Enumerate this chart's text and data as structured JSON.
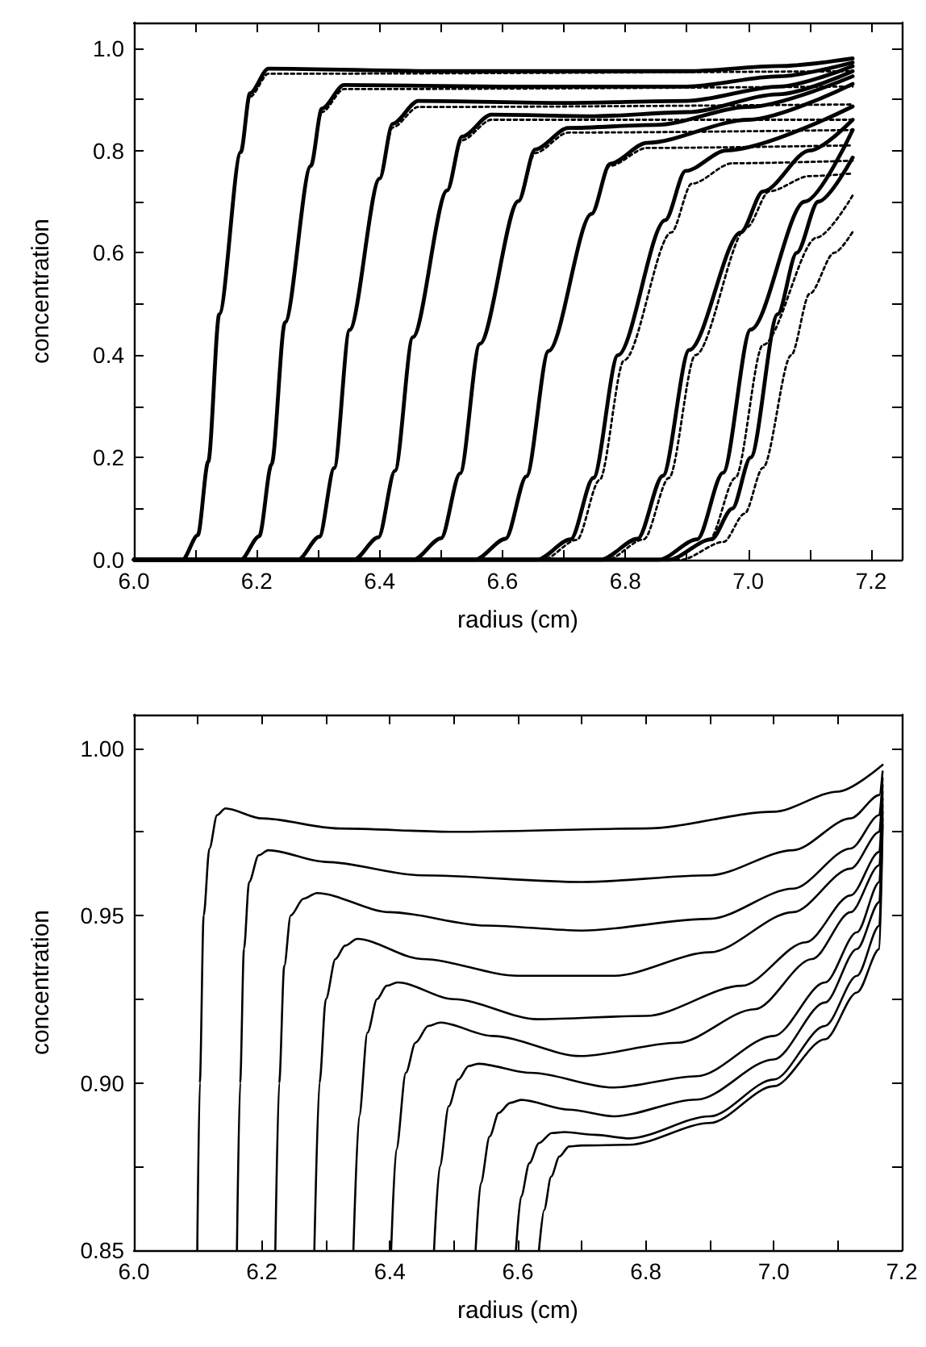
{
  "chart_data": [
    {
      "type": "line",
      "xlabel": "radius (cm)",
      "ylabel": "concentration",
      "xlim": [
        6.0,
        7.25
      ],
      "ylim": [
        0,
        1.05
      ],
      "marker": "none",
      "grid": false,
      "xticks": [
        {
          "value": 6.0,
          "label": "6.0"
        },
        {
          "value": 6.1,
          "label": null
        },
        {
          "value": 6.2,
          "label": "6.2"
        },
        {
          "value": 6.3,
          "label": null
        },
        {
          "value": 6.4,
          "label": "6.4"
        },
        {
          "value": 6.5,
          "label": null
        },
        {
          "value": 6.6,
          "label": "6.6"
        },
        {
          "value": 6.7,
          "label": null
        },
        {
          "value": 6.8,
          "label": "6.8"
        },
        {
          "value": 6.9,
          "label": null
        },
        {
          "value": 7.0,
          "label": "7.0"
        },
        {
          "value": 7.1,
          "label": null
        },
        {
          "value": 7.2,
          "label": "7.2"
        }
      ],
      "yticks": [
        {
          "value": 0,
          "label": "0.0"
        },
        {
          "value": 0.1,
          "label": null
        },
        {
          "value": 0.2,
          "label": "0.2"
        },
        {
          "value": 0.3,
          "label": null
        },
        {
          "value": 0.4,
          "label": "0.4"
        },
        {
          "value": 0.5,
          "label": null
        },
        {
          "value": 0.6,
          "label": "0.6"
        },
        {
          "value": 0.7,
          "label": null
        },
        {
          "value": 0.8,
          "label": "0.8"
        },
        {
          "value": 0.9,
          "label": null
        },
        {
          "value": 1.0,
          "label": "1.0"
        }
      ],
      "series": [
        {
          "color": "#000000",
          "line_style": "dotted",
          "x": [
            6.0,
            6.079,
            6.104,
            6.121,
            6.139,
            6.174,
            6.189,
            6.219,
            7.17
          ],
          "values": [
            0,
            0,
            0.048,
            0.192,
            0.48,
            0.797,
            0.905,
            0.95,
            0.955
          ]
        },
        {
          "color": "#000000",
          "line_style": "dotted",
          "x": [
            6.0,
            6.174,
            6.204,
            6.224,
            6.246,
            6.288,
            6.306,
            6.342,
            7.17
          ],
          "values": [
            0,
            0,
            0.046,
            0.186,
            0.464,
            0.77,
            0.875,
            0.92,
            0.925
          ]
        },
        {
          "color": "#000000",
          "line_style": "dotted",
          "x": [
            6.0,
            6.267,
            6.302,
            6.326,
            6.351,
            6.4,
            6.421,
            6.463,
            7.17
          ],
          "values": [
            0,
            0,
            0.045,
            0.179,
            0.449,
            0.745,
            0.845,
            0.885,
            0.89
          ]
        },
        {
          "color": "#000000",
          "line_style": "dotted",
          "x": [
            6.0,
            6.358,
            6.398,
            6.425,
            6.454,
            6.51,
            6.534,
            6.582,
            7.17
          ],
          "values": [
            0,
            0,
            0.044,
            0.174,
            0.435,
            0.722,
            0.82,
            0.86,
            0.86
          ]
        },
        {
          "color": "#000000",
          "line_style": "dotted",
          "x": [
            6.0,
            6.455,
            6.5,
            6.531,
            6.563,
            6.626,
            6.653,
            6.707,
            7.17
          ],
          "values": [
            0,
            0,
            0.042,
            0.169,
            0.422,
            0.701,
            0.795,
            0.835,
            0.84
          ]
        },
        {
          "color": "#000000",
          "line_style": "dotted",
          "x": [
            6.0,
            6.555,
            6.605,
            6.639,
            6.675,
            6.745,
            6.775,
            6.835,
            7.17
          ],
          "values": [
            0,
            0,
            0.041,
            0.163,
            0.408,
            0.676,
            0.77,
            0.805,
            0.81
          ]
        },
        {
          "color": "#000000",
          "line_style": "dotted",
          "x": [
            6.0,
            6.666,
            6.721,
            6.758,
            6.798,
            6.875,
            6.908,
            6.974,
            7.17
          ],
          "values": [
            0,
            0,
            0.039,
            0.156,
            0.39,
            0.64,
            0.735,
            0.775,
            0.78
          ]
        },
        {
          "color": "#000000",
          "line_style": "dotted",
          "x": [
            6.0,
            6.77,
            6.83,
            6.871,
            6.914,
            6.998,
            7.034,
            7.1,
            7.17
          ],
          "values": [
            0,
            0,
            0.04,
            0.16,
            0.4,
            0.65,
            0.72,
            0.75,
            0.755
          ]
        },
        {
          "color": "#000000",
          "line_style": "dotted",
          "x": [
            6.0,
            6.874,
            6.937,
            6.979,
            7.024,
            7.112,
            7.17
          ],
          "values": [
            0,
            0,
            0.04,
            0.16,
            0.42,
            0.63,
            0.712
          ]
        },
        {
          "color": "#000000",
          "line_style": "dotted",
          "x": [
            6.0,
            6.89,
            6.96,
            6.994,
            7.024,
            7.07,
            7.1,
            7.14,
            7.17
          ],
          "values": [
            0,
            0,
            0.035,
            0.09,
            0.18,
            0.4,
            0.52,
            0.6,
            0.641
          ]
        },
        {
          "color": "#000000",
          "line_style": "solid",
          "x": [
            6.0,
            6.079,
            6.104,
            6.121,
            6.139,
            6.174,
            6.189,
            6.219,
            6.5,
            6.9,
            7.05,
            7.17
          ],
          "values": [
            0,
            0,
            0.048,
            0.192,
            0.48,
            0.797,
            0.912,
            0.96,
            0.955,
            0.955,
            0.965,
            0.98
          ]
        },
        {
          "color": "#000000",
          "line_style": "solid",
          "x": [
            6.0,
            6.174,
            6.204,
            6.224,
            6.246,
            6.288,
            6.306,
            6.342,
            6.6,
            6.9,
            7.05,
            7.17
          ],
          "values": [
            0,
            0,
            0.046,
            0.186,
            0.464,
            0.77,
            0.882,
            0.928,
            0.925,
            0.925,
            0.945,
            0.972
          ]
        },
        {
          "color": "#000000",
          "line_style": "solid",
          "x": [
            6.0,
            6.267,
            6.302,
            6.326,
            6.351,
            6.4,
            6.421,
            6.463,
            6.7,
            6.9,
            7.05,
            7.17
          ],
          "values": [
            0,
            0,
            0.045,
            0.179,
            0.449,
            0.745,
            0.852,
            0.897,
            0.893,
            0.897,
            0.925,
            0.965
          ]
        },
        {
          "color": "#000000",
          "line_style": "solid",
          "x": [
            6.0,
            6.358,
            6.398,
            6.425,
            6.454,
            6.51,
            6.534,
            6.582,
            6.75,
            6.9,
            7.05,
            7.17
          ],
          "values": [
            0,
            0,
            0.044,
            0.174,
            0.435,
            0.722,
            0.827,
            0.87,
            0.867,
            0.875,
            0.91,
            0.955
          ]
        },
        {
          "color": "#000000",
          "line_style": "solid",
          "x": [
            6.0,
            6.455,
            6.5,
            6.531,
            6.563,
            6.626,
            6.653,
            6.707,
            6.85,
            7.0,
            7.17
          ],
          "values": [
            0,
            0,
            0.042,
            0.169,
            0.422,
            0.701,
            0.802,
            0.844,
            0.85,
            0.885,
            0.945
          ]
        },
        {
          "color": "#000000",
          "line_style": "solid",
          "x": [
            6.0,
            6.555,
            6.605,
            6.639,
            6.675,
            6.745,
            6.775,
            6.835,
            7.0,
            7.17
          ],
          "values": [
            0,
            0,
            0.041,
            0.163,
            0.408,
            0.676,
            0.774,
            0.815,
            0.86,
            0.93
          ]
        },
        {
          "color": "#000000",
          "line_style": "solid",
          "x": [
            6.0,
            6.656,
            6.711,
            6.748,
            6.788,
            6.865,
            6.898,
            6.964,
            7.17
          ],
          "values": [
            0,
            0,
            0.04,
            0.16,
            0.4,
            0.664,
            0.76,
            0.8,
            0.886
          ]
        },
        {
          "color": "#000000",
          "line_style": "solid",
          "x": [
            6.0,
            6.76,
            6.82,
            6.861,
            6.904,
            6.988,
            7.024,
            7.1,
            7.17
          ],
          "values": [
            0,
            0,
            0.041,
            0.164,
            0.41,
            0.64,
            0.72,
            0.8,
            0.86
          ]
        },
        {
          "color": "#000000",
          "line_style": "solid",
          "x": [
            6.0,
            6.854,
            6.917,
            6.959,
            7.004,
            7.092,
            7.17
          ],
          "values": [
            0,
            0,
            0.04,
            0.17,
            0.45,
            0.7,
            0.84
          ]
        },
        {
          "color": "#000000",
          "line_style": "solid",
          "x": [
            6.0,
            6.87,
            6.94,
            6.974,
            7.004,
            7.048,
            7.079,
            7.114,
            7.17
          ],
          "values": [
            0,
            0,
            0.04,
            0.1,
            0.2,
            0.48,
            0.6,
            0.7,
            0.786
          ]
        }
      ]
    },
    {
      "type": "line",
      "xlabel": "radius (cm)",
      "ylabel": "concentration",
      "xlim": [
        6.0,
        7.2
      ],
      "ylim": [
        0.85,
        1.01
      ],
      "marker": "none",
      "grid": false,
      "xticks": [
        {
          "value": 6.0,
          "label": "6.0"
        },
        {
          "value": 6.1,
          "label": null
        },
        {
          "value": 6.2,
          "label": "6.2"
        },
        {
          "value": 6.3,
          "label": null
        },
        {
          "value": 6.4,
          "label": "6.4"
        },
        {
          "value": 6.5,
          "label": null
        },
        {
          "value": 6.6,
          "label": "6.6"
        },
        {
          "value": 6.7,
          "label": null
        },
        {
          "value": 6.8,
          "label": "6.8"
        },
        {
          "value": 6.9,
          "label": null
        },
        {
          "value": 7.0,
          "label": "7.0"
        },
        {
          "value": 7.1,
          "label": null
        },
        {
          "value": 7.2,
          "label": "7.2"
        }
      ],
      "yticks": [
        {
          "value": 0.85,
          "label": "0.85"
        },
        {
          "value": 0.875,
          "label": null
        },
        {
          "value": 0.9,
          "label": "0.90"
        },
        {
          "value": 0.925,
          "label": null
        },
        {
          "value": 0.95,
          "label": "0.95"
        },
        {
          "value": 0.975,
          "label": null
        },
        {
          "value": 1.0,
          "label": "1.00"
        }
      ],
      "series": [
        {
          "color": "#000000",
          "line_style": "solid",
          "x": [
            6.099,
            6.103,
            6.109,
            6.118,
            6.13,
            6.143,
            6.2,
            6.32,
            6.5,
            6.8,
            7.0,
            7.1,
            7.17
          ],
          "values": [
            0.85,
            0.9,
            0.95,
            0.97,
            0.98,
            0.982,
            0.979,
            0.976,
            0.975,
            0.976,
            0.981,
            0.987,
            0.995
          ]
        },
        {
          "color": "#000000",
          "line_style": "solid",
          "x": [
            6.161,
            6.166,
            6.172,
            6.18,
            6.195,
            6.21,
            6.3,
            6.45,
            6.7,
            6.9,
            7.03,
            7.12,
            7.165,
            7.17
          ],
          "values": [
            0.85,
            0.9,
            0.94,
            0.96,
            0.968,
            0.9695,
            0.966,
            0.962,
            0.96,
            0.962,
            0.9695,
            0.979,
            0.986,
            0.993
          ]
        },
        {
          "color": "#000000",
          "line_style": "solid",
          "x": [
            6.221,
            6.227,
            6.235,
            6.245,
            6.265,
            6.286,
            6.4,
            6.55,
            6.7,
            6.9,
            7.03,
            7.12,
            7.165,
            7.17
          ],
          "values": [
            0.85,
            0.9,
            0.935,
            0.95,
            0.955,
            0.9567,
            0.951,
            0.947,
            0.9455,
            0.949,
            0.958,
            0.97,
            0.98,
            0.991
          ]
        },
        {
          "color": "#000000",
          "line_style": "solid",
          "x": [
            6.282,
            6.29,
            6.3,
            6.315,
            6.33,
            6.349,
            6.45,
            6.6,
            6.75,
            6.9,
            7.03,
            7.12,
            7.165,
            7.17
          ],
          "values": [
            0.85,
            0.9,
            0.925,
            0.937,
            0.941,
            0.943,
            0.937,
            0.932,
            0.932,
            0.939,
            0.951,
            0.964,
            0.975,
            0.989
          ]
        },
        {
          "color": "#000000",
          "line_style": "solid",
          "x": [
            6.343,
            6.352,
            6.365,
            6.38,
            6.395,
            6.412,
            6.5,
            6.631,
            6.8,
            6.95,
            7.05,
            7.12,
            7.165,
            7.17
          ],
          "values": [
            0.85,
            0.89,
            0.915,
            0.925,
            0.929,
            0.93,
            0.925,
            0.919,
            0.92,
            0.929,
            0.942,
            0.956,
            0.969,
            0.987
          ]
        },
        {
          "color": "#000000",
          "line_style": "solid",
          "x": [
            6.402,
            6.41,
            6.425,
            6.44,
            6.46,
            6.479,
            6.56,
            6.698,
            6.85,
            6.97,
            7.06,
            7.12,
            7.165,
            7.17
          ],
          "values": [
            0.85,
            0.88,
            0.903,
            0.912,
            0.917,
            0.918,
            0.914,
            0.908,
            0.912,
            0.922,
            0.937,
            0.951,
            0.965,
            0.985
          ]
        },
        {
          "color": "#000000",
          "line_style": "solid",
          "x": [
            6.469,
            6.478,
            6.492,
            6.507,
            6.523,
            6.538,
            6.62,
            6.749,
            6.88,
            7.0,
            7.08,
            7.13,
            7.165,
            7.17
          ],
          "values": [
            0.85,
            0.875,
            0.893,
            0.901,
            0.905,
            0.9057,
            0.903,
            0.8986,
            0.902,
            0.914,
            0.93,
            0.945,
            0.96,
            0.983
          ]
        },
        {
          "color": "#000000",
          "line_style": "solid",
          "x": [
            6.534,
            6.542,
            6.556,
            6.57,
            6.588,
            6.605,
            6.68,
            6.749,
            6.88,
            7.0,
            7.08,
            7.13,
            7.165,
            7.17
          ],
          "values": [
            0.85,
            0.87,
            0.884,
            0.891,
            0.894,
            0.8949,
            0.892,
            0.89,
            0.895,
            0.907,
            0.924,
            0.94,
            0.954,
            0.981
          ]
        },
        {
          "color": "#000000",
          "line_style": "solid",
          "x": [
            6.597,
            6.605,
            6.618,
            6.633,
            6.653,
            6.673,
            6.72,
            6.774,
            6.9,
            7.0,
            7.08,
            7.13,
            7.165,
            7.17
          ],
          "values": [
            0.85,
            0.866,
            0.876,
            0.882,
            0.885,
            0.8853,
            0.8845,
            0.8834,
            0.89,
            0.901,
            0.917,
            0.932,
            0.947,
            0.979
          ]
        },
        {
          "color": "#000000",
          "line_style": "solid",
          "x": [
            6.633,
            6.641,
            6.652,
            6.665,
            6.68,
            6.7,
            6.774,
            6.9,
            7.0,
            7.08,
            7.13,
            7.165,
            7.17
          ],
          "values": [
            0.85,
            0.862,
            0.872,
            0.878,
            0.881,
            0.8813,
            0.8815,
            0.888,
            0.899,
            0.913,
            0.927,
            0.94,
            0.977
          ]
        }
      ]
    }
  ]
}
